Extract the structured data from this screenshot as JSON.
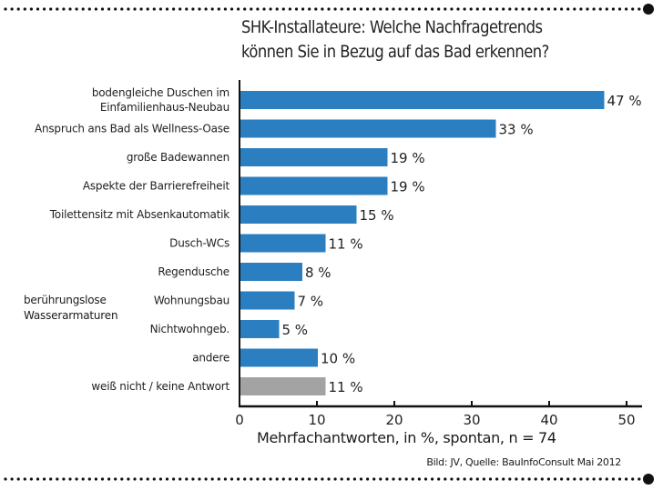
{
  "chart_data": {
    "type": "bar",
    "orientation": "horizontal",
    "title_line1": "SHK-Installateure:  Welche Nachfragetrends",
    "title_line2": "können Sie in Bezug auf das Bad erkennen?",
    "categories": [
      [
        "bodengleiche Duschen im",
        "Einfamilienhaus-Neubau"
      ],
      [
        "Anspruch ans Bad als Wellness-Oase"
      ],
      [
        "große Badewannen"
      ],
      [
        "Aspekte der Barrierefreiheit"
      ],
      [
        "Toilettensitz mit Absenkautomatik"
      ],
      [
        "Dusch-WCs"
      ],
      [
        "Regendusche"
      ],
      [
        "Wohnungsbau"
      ],
      [
        "Nichtwohngeb."
      ],
      [
        "andere"
      ],
      [
        "weiß nicht / keine Antwort"
      ]
    ],
    "values": [
      47,
      33,
      19,
      19,
      15,
      11,
      8,
      7,
      5,
      10,
      11
    ],
    "value_labels": [
      "47 %",
      "33 %",
      "19 %",
      "19 %",
      "15 %",
      "11 %",
      "8 %",
      "7 %",
      "5 %",
      "10 %",
      "11 %"
    ],
    "group_label": [
      "berührungslose",
      "Wasserarmaturen"
    ],
    "xlabel": "Mehrfachantworten, in %, spontan, n = 74",
    "xticks": [
      0,
      10,
      20,
      30,
      40,
      50
    ],
    "xlim": [
      0,
      52
    ],
    "grid": false,
    "colors": {
      "bar": "#2b7fc0",
      "no_answer_bar": "#a3a3a3",
      "axis": "#111111"
    },
    "source": "Bild: JV, Quelle: BauInfoConsult  Mai 2012"
  }
}
